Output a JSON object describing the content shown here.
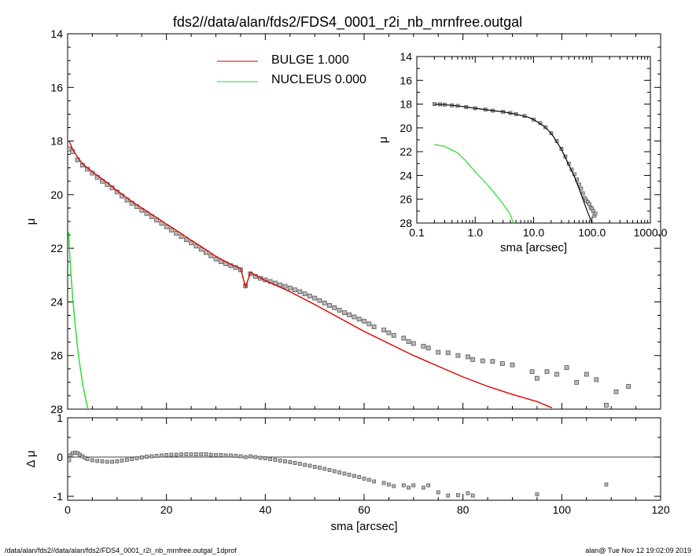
{
  "title": "fds2//data/alan/fds2/FDS4_0001_r2i_nb_mrnfree.outgal",
  "footer": {
    "left": "/data/alan/fds2//data/alan/fds2/FDS4_0001_r2i_nb_mrnfree.outgal_1dprof",
    "right": "alan@  Tue Nov 12 19:02:09 2019"
  },
  "colors": {
    "bulge": "#dd0000",
    "nucleus": "#22dd22",
    "data": "#555555",
    "model": "#000000"
  },
  "legend": [
    {
      "key": "bulge",
      "label": "BULGE  1.000",
      "color": "#dd0000"
    },
    {
      "key": "nucleus",
      "label": "NUCLEUS  0.000",
      "color": "#22dd22"
    }
  ],
  "chart_data": [
    {
      "id": "main",
      "type": "scatter",
      "xlabel": "",
      "ylabel": "μ",
      "xlim": [
        0,
        120
      ],
      "ylim": [
        28,
        14
      ],
      "yticks": [
        "14",
        "16",
        "18",
        "20",
        "22",
        "24",
        "26",
        "28"
      ],
      "observed": [
        [
          0.3,
          18.3
        ],
        [
          1,
          18.4
        ],
        [
          2,
          18.7
        ],
        [
          3,
          18.9
        ],
        [
          4,
          19.05
        ],
        [
          5,
          19.2
        ],
        [
          6,
          19.35
        ],
        [
          7,
          19.5
        ],
        [
          8,
          19.62
        ],
        [
          9,
          19.75
        ],
        [
          10,
          19.9
        ],
        [
          11,
          20.05
        ],
        [
          12,
          20.2
        ],
        [
          13,
          20.32
        ],
        [
          14,
          20.45
        ],
        [
          15,
          20.58
        ],
        [
          16,
          20.7
        ],
        [
          17,
          20.82
        ],
        [
          18,
          20.95
        ],
        [
          19,
          21.07
        ],
        [
          20,
          21.2
        ],
        [
          21,
          21.32
        ],
        [
          22,
          21.44
        ],
        [
          23,
          21.56
        ],
        [
          24,
          21.68
        ],
        [
          25,
          21.8
        ],
        [
          26,
          21.92
        ],
        [
          27,
          22.04
        ],
        [
          28,
          22.16
        ],
        [
          29,
          22.28
        ],
        [
          30,
          22.4
        ],
        [
          31,
          22.5
        ],
        [
          32,
          22.58
        ],
        [
          33,
          22.65
        ],
        [
          34,
          22.72
        ],
        [
          35,
          22.8
        ],
        [
          36,
          23.4
        ],
        [
          37,
          22.95
        ],
        [
          38,
          23.05
        ],
        [
          39,
          23.12
        ],
        [
          40,
          23.18
        ],
        [
          41,
          23.24
        ],
        [
          42,
          23.3
        ],
        [
          43,
          23.36
        ],
        [
          44,
          23.42
        ],
        [
          45,
          23.48
        ],
        [
          46,
          23.55
        ],
        [
          47,
          23.62
        ],
        [
          48,
          23.7
        ],
        [
          49,
          23.78
        ],
        [
          50,
          23.86
        ],
        [
          51,
          23.95
        ],
        [
          52,
          24.04
        ],
        [
          53,
          24.13
        ],
        [
          54,
          24.22
        ],
        [
          55,
          24.31
        ],
        [
          56,
          24.4
        ],
        [
          57,
          24.48
        ],
        [
          58,
          24.56
        ],
        [
          59,
          24.64
        ],
        [
          60,
          24.72
        ],
        [
          61,
          24.82
        ],
        [
          62,
          24.93
        ],
        [
          64,
          25.05
        ],
        [
          65,
          25.15
        ],
        [
          66,
          25.25
        ],
        [
          68,
          25.35
        ],
        [
          69,
          25.48
        ],
        [
          70,
          25.55
        ],
        [
          72,
          25.65
        ],
        [
          73,
          25.72
        ],
        [
          75,
          25.88
        ],
        [
          77,
          25.9
        ],
        [
          79,
          26.0
        ],
        [
          81,
          26.05
        ],
        [
          82,
          26.15
        ],
        [
          84,
          26.2
        ],
        [
          86,
          26.22
        ],
        [
          88,
          26.3
        ],
        [
          90,
          26.35
        ],
        [
          94,
          26.6
        ],
        [
          95,
          26.85
        ],
        [
          97,
          26.6
        ],
        [
          99,
          26.7
        ],
        [
          101,
          26.45
        ],
        [
          103,
          27.0
        ],
        [
          105,
          26.7
        ],
        [
          107,
          26.9
        ],
        [
          109,
          27.85
        ],
        [
          111,
          27.35
        ],
        [
          113.5,
          27.15
        ]
      ],
      "bulge": [
        [
          0.3,
          18.0
        ],
        [
          1,
          18.3
        ],
        [
          2,
          18.6
        ],
        [
          3,
          18.85
        ],
        [
          5,
          19.15
        ],
        [
          8,
          19.55
        ],
        [
          10,
          19.85
        ],
        [
          13,
          20.25
        ],
        [
          15,
          20.5
        ],
        [
          18,
          20.85
        ],
        [
          20,
          21.1
        ],
        [
          23,
          21.45
        ],
        [
          25,
          21.7
        ],
        [
          28,
          22.05
        ],
        [
          30,
          22.3
        ],
        [
          33,
          22.6
        ],
        [
          35,
          22.75
        ],
        [
          36,
          23.45
        ],
        [
          37,
          22.9
        ],
        [
          40,
          23.2
        ],
        [
          45,
          23.62
        ],
        [
          50,
          24.1
        ],
        [
          55,
          24.6
        ],
        [
          60,
          25.1
        ],
        [
          65,
          25.55
        ],
        [
          70,
          26.0
        ],
        [
          75,
          26.4
        ],
        [
          80,
          26.8
        ],
        [
          85,
          27.15
        ],
        [
          90,
          27.45
        ],
        [
          95,
          27.72
        ],
        [
          98,
          27.95
        ]
      ],
      "nucleus": [
        [
          0.2,
          21.4
        ],
        [
          0.5,
          22.5
        ],
        [
          1,
          23.8
        ],
        [
          1.5,
          24.8
        ],
        [
          2,
          25.7
        ],
        [
          2.5,
          26.4
        ],
        [
          3,
          27.0
        ],
        [
          3.5,
          27.5
        ],
        [
          4,
          27.9
        ],
        [
          4.3,
          28.1
        ]
      ]
    },
    {
      "id": "residual",
      "type": "scatter",
      "xlabel": "sma [arcsec]",
      "ylabel": "Δ μ",
      "xlim": [
        0,
        120
      ],
      "ylim": [
        -1.1,
        1.0
      ],
      "xticks": [
        "0",
        "20",
        "40",
        "60",
        "80",
        "100",
        "120"
      ],
      "yticks": [
        "1",
        "0",
        "-1"
      ],
      "points": [
        [
          0.3,
          -0.08
        ],
        [
          0.6,
          0.05
        ],
        [
          1,
          0.1
        ],
        [
          1.5,
          0.11
        ],
        [
          2,
          0.1
        ],
        [
          2.5,
          0.06
        ],
        [
          3,
          0.02
        ],
        [
          3.5,
          -0.02
        ],
        [
          4,
          -0.05
        ],
        [
          5,
          -0.08
        ],
        [
          6,
          -0.1
        ],
        [
          7,
          -0.11
        ],
        [
          8,
          -0.12
        ],
        [
          9,
          -0.12
        ],
        [
          10,
          -0.11
        ],
        [
          11,
          -0.09
        ],
        [
          12,
          -0.07
        ],
        [
          13,
          -0.05
        ],
        [
          14,
          -0.03
        ],
        [
          15,
          -0.01
        ],
        [
          16,
          0.01
        ],
        [
          17,
          0.02
        ],
        [
          18,
          0.03
        ],
        [
          19,
          0.04
        ],
        [
          20,
          0.05
        ],
        [
          21,
          0.06
        ],
        [
          22,
          0.06
        ],
        [
          23,
          0.07
        ],
        [
          24,
          0.07
        ],
        [
          25,
          0.07
        ],
        [
          26,
          0.07
        ],
        [
          27,
          0.07
        ],
        [
          28,
          0.07
        ],
        [
          29,
          0.06
        ],
        [
          30,
          0.05
        ],
        [
          31,
          0.05
        ],
        [
          32,
          0.04
        ],
        [
          33,
          0.04
        ],
        [
          34,
          0.03
        ],
        [
          35,
          0.02
        ],
        [
          36,
          0.0
        ],
        [
          37,
          0.02
        ],
        [
          38,
          -0.0
        ],
        [
          39,
          -0.02
        ],
        [
          40,
          -0.03
        ],
        [
          41,
          -0.05
        ],
        [
          42,
          -0.07
        ],
        [
          43,
          -0.09
        ],
        [
          44,
          -0.11
        ],
        [
          45,
          -0.13
        ],
        [
          46,
          -0.15
        ],
        [
          47,
          -0.17
        ],
        [
          48,
          -0.2
        ],
        [
          49,
          -0.22
        ],
        [
          50,
          -0.25
        ],
        [
          51,
          -0.27
        ],
        [
          52,
          -0.3
        ],
        [
          53,
          -0.33
        ],
        [
          54,
          -0.36
        ],
        [
          55,
          -0.39
        ],
        [
          56,
          -0.42
        ],
        [
          57,
          -0.45
        ],
        [
          58,
          -0.48
        ],
        [
          59,
          -0.51
        ],
        [
          60,
          -0.55
        ],
        [
          61,
          -0.58
        ],
        [
          62,
          -0.62
        ],
        [
          64,
          -0.66
        ],
        [
          65,
          -0.7
        ],
        [
          66,
          -0.74
        ],
        [
          68,
          -0.72
        ],
        [
          69,
          -0.78
        ],
        [
          70,
          -0.72
        ],
        [
          72,
          -0.78
        ],
        [
          73,
          -0.72
        ],
        [
          75,
          -0.9
        ],
        [
          77,
          -0.98
        ],
        [
          79,
          -0.97
        ],
        [
          81,
          -0.92
        ],
        [
          82,
          -0.98
        ],
        [
          95,
          -0.95
        ],
        [
          109,
          -0.7
        ]
      ]
    },
    {
      "id": "inset",
      "type": "scatter",
      "xscale": "log",
      "xlabel": "sma [arcsec]",
      "ylabel": "μ",
      "xlim": [
        0.1,
        1000
      ],
      "ylim": [
        28,
        14
      ],
      "xticks": [
        "0.1",
        "1.0",
        "10.0",
        "100.0",
        "1000.0"
      ],
      "yticks": [
        "14",
        "16",
        "18",
        "20",
        "22",
        "24",
        "26",
        "28"
      ],
      "observed": [
        [
          0.2,
          18.0
        ],
        [
          0.25,
          18.02
        ],
        [
          0.3,
          18.05
        ],
        [
          0.4,
          18.1
        ],
        [
          0.5,
          18.15
        ],
        [
          0.7,
          18.25
        ],
        [
          1,
          18.35
        ],
        [
          1.5,
          18.45
        ],
        [
          2,
          18.55
        ],
        [
          3,
          18.65
        ],
        [
          4,
          18.75
        ],
        [
          5,
          18.85
        ],
        [
          7,
          19.0
        ],
        [
          10,
          19.3
        ],
        [
          13,
          19.6
        ],
        [
          16,
          19.95
        ],
        [
          20,
          20.45
        ],
        [
          25,
          21.1
        ],
        [
          30,
          21.75
        ],
        [
          35,
          22.4
        ],
        [
          40,
          23.0
        ],
        [
          45,
          23.5
        ],
        [
          50,
          23.9
        ],
        [
          55,
          24.35
        ],
        [
          60,
          24.75
        ],
        [
          65,
          25.1
        ],
        [
          70,
          25.5
        ],
        [
          75,
          25.9
        ],
        [
          80,
          26.1
        ],
        [
          85,
          26.25
        ],
        [
          90,
          26.4
        ],
        [
          95,
          26.7
        ],
        [
          100,
          26.8
        ],
        [
          105,
          27.0
        ],
        [
          110,
          27.4
        ],
        [
          114,
          27.2
        ]
      ],
      "model": [
        [
          0.2,
          18.0
        ],
        [
          0.3,
          18.05
        ],
        [
          0.5,
          18.15
        ],
        [
          1,
          18.35
        ],
        [
          2,
          18.55
        ],
        [
          3,
          18.65
        ],
        [
          5,
          18.85
        ],
        [
          8,
          19.1
        ],
        [
          10,
          19.3
        ],
        [
          15,
          19.85
        ],
        [
          20,
          20.45
        ],
        [
          30,
          21.8
        ],
        [
          40,
          23.1
        ],
        [
          50,
          24.1
        ],
        [
          60,
          25.1
        ],
        [
          70,
          26.0
        ],
        [
          80,
          26.8
        ],
        [
          90,
          27.45
        ],
        [
          100,
          28.0
        ]
      ],
      "nucleus": [
        [
          0.2,
          21.4
        ],
        [
          0.3,
          21.55
        ],
        [
          0.5,
          22.1
        ],
        [
          0.7,
          22.8
        ],
        [
          1,
          23.7
        ],
        [
          1.5,
          24.6
        ],
        [
          2,
          25.3
        ],
        [
          3,
          26.4
        ],
        [
          4,
          27.3
        ],
        [
          4.5,
          28.0
        ]
      ]
    }
  ]
}
